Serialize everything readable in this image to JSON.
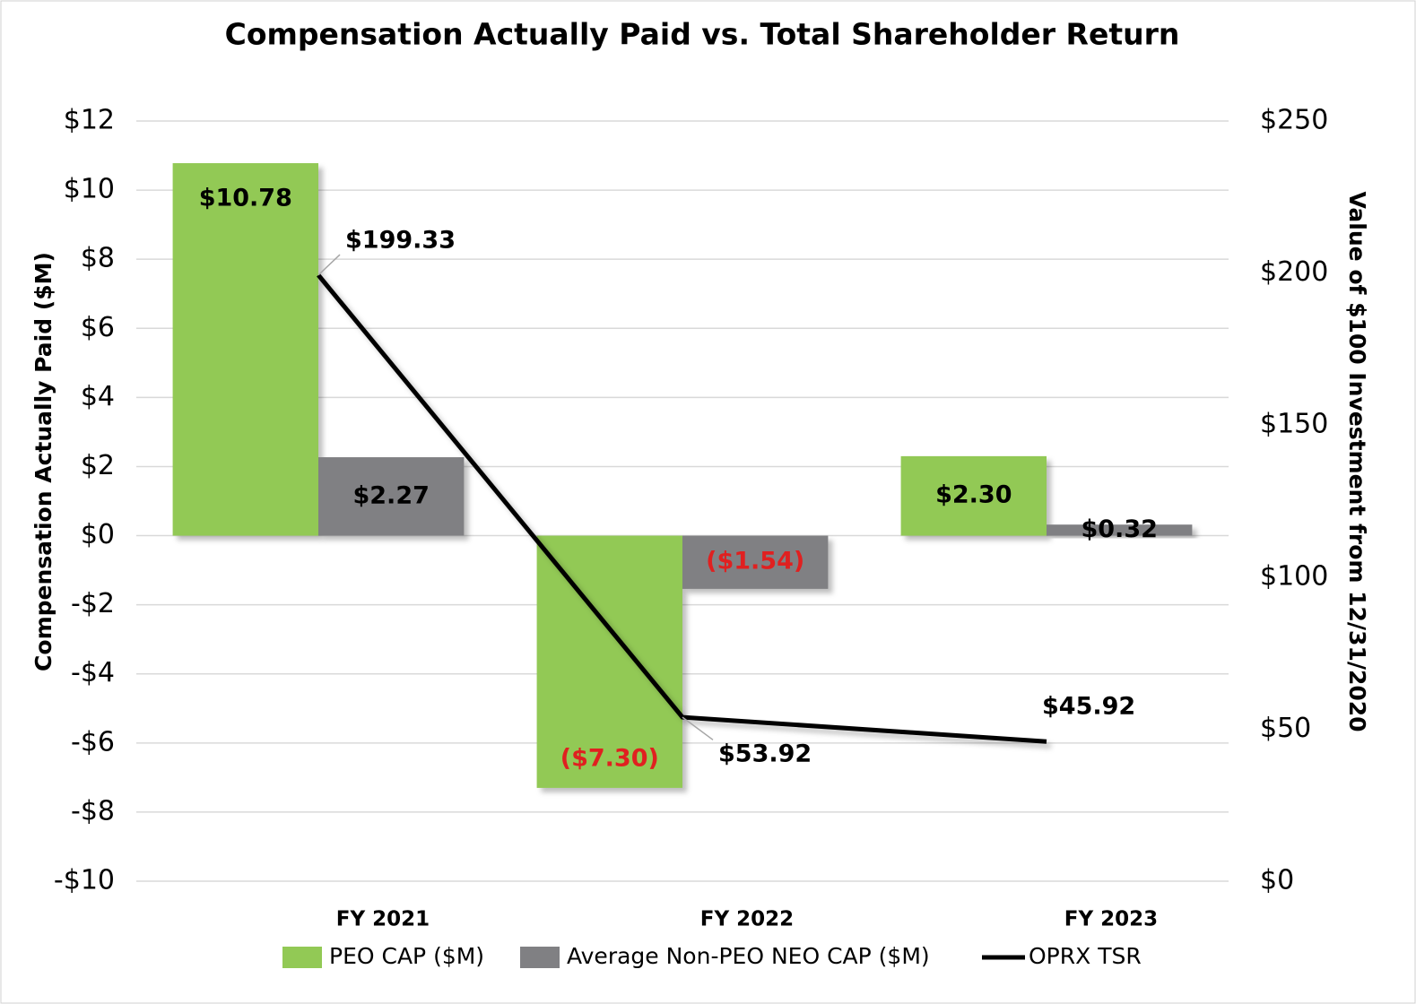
{
  "chart_data": {
    "type": "bar",
    "title": "Compensation Actually Paid vs. Total Shareholder Return",
    "y_label": "Compensation Actually Paid ($M)",
    "y2_label": "Value of $100 Investment from 12/31/2020",
    "categories": [
      "FY 2021",
      "FY 2022",
      "FY 2023"
    ],
    "series": [
      {
        "name": "PEO CAP ($M)",
        "type": "bar",
        "color": "#92c955",
        "values": [
          10.78,
          -7.3,
          2.3
        ],
        "value_labels": [
          "$10.78",
          "($7.30)",
          "$2.30"
        ]
      },
      {
        "name": "Average Non-PEO NEO CAP ($M)",
        "type": "bar",
        "color": "#808083",
        "values": [
          2.27,
          -1.54,
          0.32
        ],
        "value_labels": [
          "$2.27",
          "($1.54)",
          "$0.32"
        ]
      },
      {
        "name": "OPRX TSR",
        "type": "line",
        "axis": "y2",
        "color": "#000000",
        "values": [
          199.33,
          53.92,
          45.92
        ],
        "value_labels": [
          "$199.33",
          "$53.92",
          "$45.92"
        ]
      }
    ],
    "ylim": [
      -10,
      12
    ],
    "yticks": [
      {
        "value": -10,
        "label": "-$10"
      },
      {
        "value": -8,
        "label": "-$8"
      },
      {
        "value": -6,
        "label": "-$6"
      },
      {
        "value": -4,
        "label": "-$4"
      },
      {
        "value": -2,
        "label": "-$2"
      },
      {
        "value": 0,
        "label": "$0"
      },
      {
        "value": 2,
        "label": "$2"
      },
      {
        "value": 4,
        "label": "$4"
      },
      {
        "value": 6,
        "label": "$6"
      },
      {
        "value": 8,
        "label": "$8"
      },
      {
        "value": 10,
        "label": "$10"
      },
      {
        "value": 12,
        "label": "$12"
      }
    ],
    "y2lim": [
      0,
      250
    ],
    "y2ticks": [
      {
        "value": 0,
        "label": "$0"
      },
      {
        "value": 50,
        "label": "$50"
      },
      {
        "value": 100,
        "label": "$100"
      },
      {
        "value": 150,
        "label": "$150"
      },
      {
        "value": 200,
        "label": "$200"
      },
      {
        "value": 250,
        "label": "$250"
      }
    ],
    "grid": true,
    "legend": "bottom"
  }
}
